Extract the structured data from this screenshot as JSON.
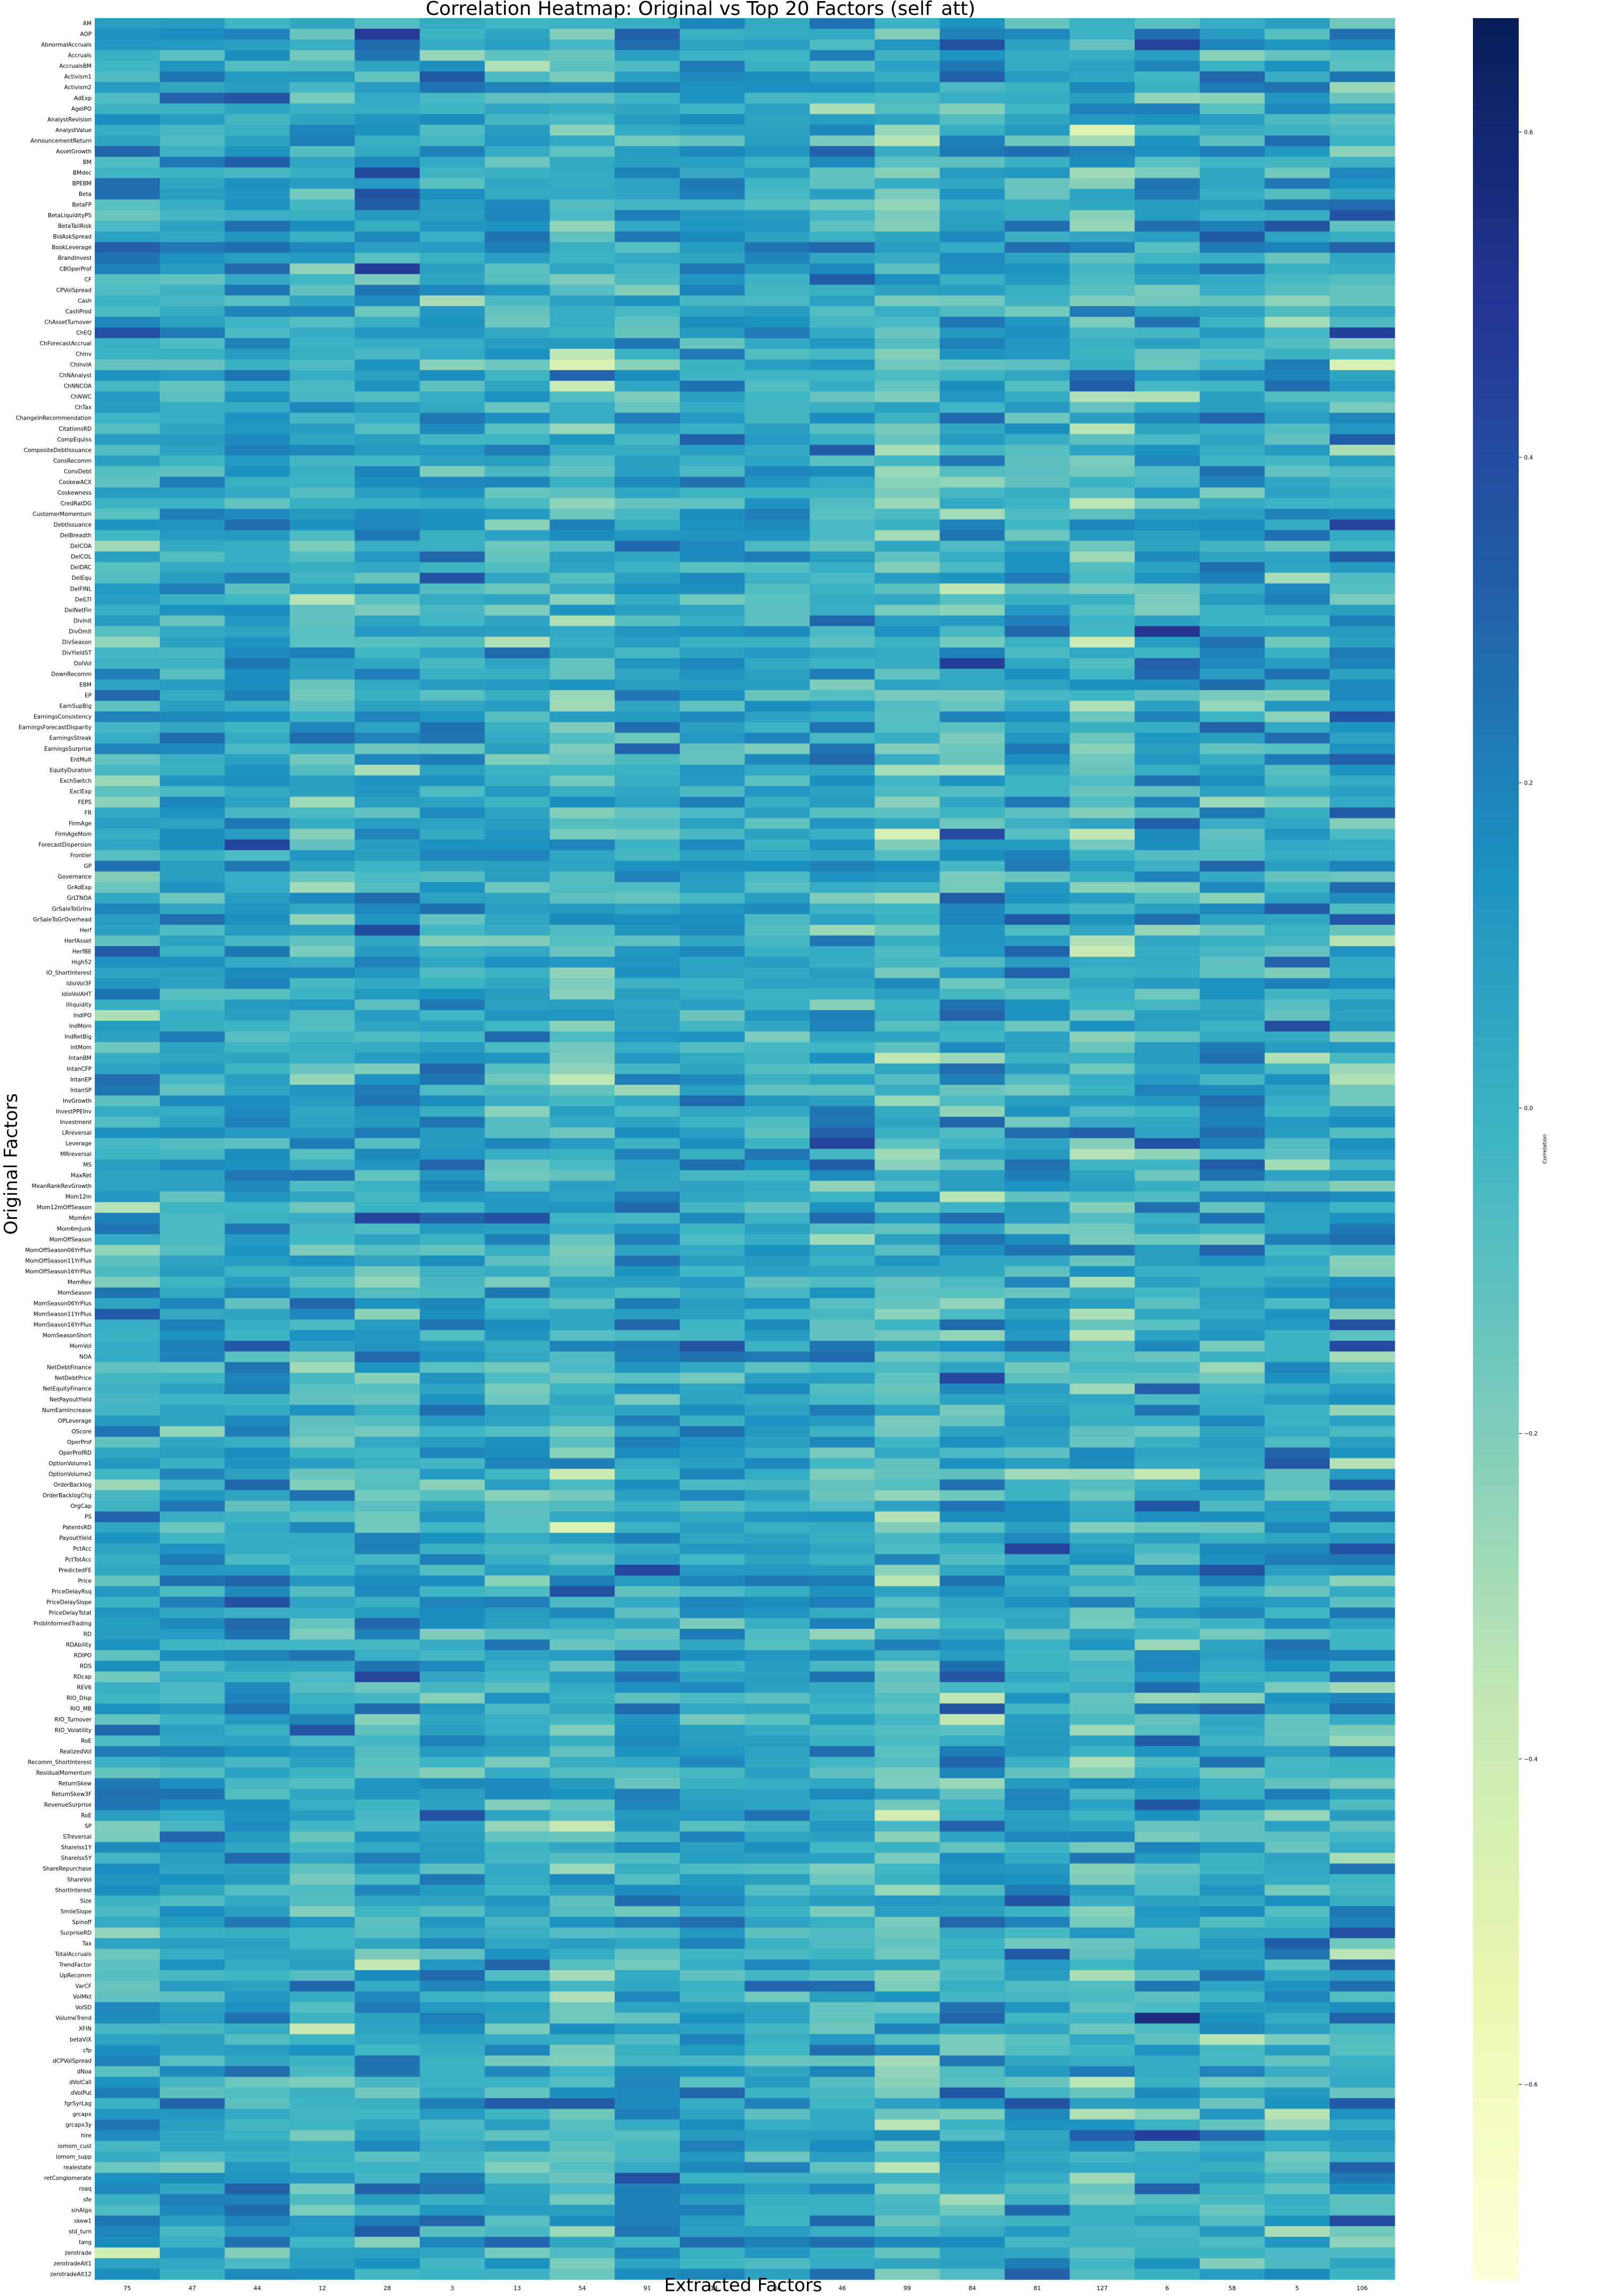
{
  "chart_data": {
    "type": "heatmap",
    "title": "Correlation Heatmap: Original vs Top 20 Factors (self_att)",
    "xlabel": "Extracted Factors",
    "ylabel": "Original Factors",
    "colorbar_label": "Correlation",
    "colormap": "YlGnBu",
    "vmin": -0.72,
    "vmax": 0.67,
    "colorbar_ticks": [
      0.6,
      0.4,
      0.2,
      0.0,
      -0.2,
      -0.4,
      -0.6
    ],
    "colorbar_tick_labels": [
      "0.6",
      "0.4",
      "0.2",
      "0.0",
      "−0.2",
      "−0.4",
      "−0.6"
    ],
    "x_categories": [
      "75",
      "47",
      "44",
      "12",
      "28",
      "3",
      "13",
      "54",
      "91",
      "114",
      "36",
      "46",
      "99",
      "84",
      "81",
      "127",
      "6",
      "58",
      "5",
      "106"
    ],
    "y_categories": [
      "AM",
      "AOP",
      "AbnormalAccruals",
      "Accruals",
      "AccrualsBM",
      "Activism1",
      "Activism2",
      "AdExp",
      "AgeIPO",
      "AnalystRevision",
      "AnalystValue",
      "AnnouncementReturn",
      "AssetGrowth",
      "BM",
      "BMdec",
      "BPEBM",
      "Beta",
      "BetaFP",
      "BetaLiquidityPS",
      "BetaTailRisk",
      "BidAskSpread",
      "BookLeverage",
      "BrandInvest",
      "CBOperProf",
      "CF",
      "CPVolSpread",
      "Cash",
      "CashProd",
      "ChAssetTurnover",
      "ChEQ",
      "ChForecastAccrual",
      "ChInv",
      "ChInvIA",
      "ChNAnalyst",
      "ChNNCOA",
      "ChNWC",
      "ChTax",
      "ChangeInRecommendation",
      "CitationsRD",
      "CompEquIss",
      "CompositeDebtIssuance",
      "ConsRecomm",
      "ConvDebt",
      "CoskewACX",
      "Coskewness",
      "CredRatDG",
      "CustomerMomentum",
      "DebtIssuance",
      "DelBreadth",
      "DelCOA",
      "DelCOL",
      "DelDRC",
      "DelEqu",
      "DelFINL",
      "DelLTI",
      "DelNetFin",
      "DivInit",
      "DivOmit",
      "DivSeason",
      "DivYieldST",
      "DolVol",
      "DownRecomm",
      "EBM",
      "EP",
      "EarnSupBig",
      "EarningsConsistency",
      "EarningsForecastDisparity",
      "EarningsStreak",
      "EarningsSurprise",
      "EntMult",
      "EquityDuration",
      "ExchSwitch",
      "ExclExp",
      "FEPS",
      "FR",
      "FirmAge",
      "FirmAgeMom",
      "ForecastDispersion",
      "Frontier",
      "GP",
      "Governance",
      "GrAdExp",
      "GrLTNOA",
      "GrSaleToGrInv",
      "GrSaleToGrOverhead",
      "Herf",
      "HerfAsset",
      "HerfBE",
      "High52",
      "IO_ShortInterest",
      "IdioVol3F",
      "IdioVolAHT",
      "Illiquidity",
      "IndIPO",
      "IndMom",
      "IndRetBig",
      "IntMom",
      "IntanBM",
      "IntanCFP",
      "IntanEP",
      "IntanSP",
      "InvGrowth",
      "InvestPPEInv",
      "Investment",
      "LRreversal",
      "Leverage",
      "MRreversal",
      "MS",
      "MaxRet",
      "MeanRankRevGrowth",
      "Mom12m",
      "Mom12mOffSeason",
      "Mom6m",
      "Mom6mJunk",
      "MomOffSeason",
      "MomOffSeason06YrPlus",
      "MomOffSeason11YrPlus",
      "MomOffSeason16YrPlus",
      "MomRev",
      "MomSeason",
      "MomSeason06YrPlus",
      "MomSeason11YrPlus",
      "MomSeason16YrPlus",
      "MomSeasonShort",
      "MomVol",
      "NOA",
      "NetDebtFinance",
      "NetDebtPrice",
      "NetEquityFinance",
      "NetPayoutYield",
      "NumEarnIncrease",
      "OPLeverage",
      "OScore",
      "OperProf",
      "OperProfRD",
      "OptionVolume1",
      "OptionVolume2",
      "OrderBacklog",
      "OrderBacklogChg",
      "OrgCap",
      "PS",
      "PatentsRD",
      "PayoutYield",
      "PctAcc",
      "PctTotAcc",
      "PredictedFE",
      "Price",
      "PriceDelayRsq",
      "PriceDelaySlope",
      "PriceDelayTstat",
      "ProbInformedTrading",
      "RD",
      "RDAbility",
      "RDIPO",
      "RDS",
      "RDcap",
      "REV6",
      "RIO_Disp",
      "RIO_MB",
      "RIO_Turnover",
      "RIO_Volatility",
      "RoE",
      "RealizedVol",
      "Recomm_ShortInterest",
      "ResidualMomentum",
      "ReturnSkew",
      "ReturnSkew3F",
      "RevenueSurprise",
      "RoE",
      "SP",
      "STreversal",
      "ShareIss1Y",
      "ShareIss5Y",
      "ShareRepurchase",
      "ShareVol",
      "ShortInterest",
      "Size",
      "SmileSlope",
      "Spinoff",
      "SurpriseRD",
      "Tax",
      "TotalAccruals",
      "TrendFactor",
      "UpRecomm",
      "VarCF",
      "VolMkt",
      "VolSD",
      "VolumeTrend",
      "XFIN",
      "betaVIX",
      "cfp",
      "dCPVolSpread",
      "dNoa",
      "dVolCall",
      "dVolPut",
      "fgrSyrLag",
      "grcapx",
      "grcapx3y",
      "hire",
      "iomom_cust",
      "iomom_supp",
      "realestate",
      "retConglomerate",
      "roaq",
      "sfe",
      "sinAlgo",
      "skew1",
      "std_turn",
      "tang",
      "zerotrade",
      "zerotradeAlt1",
      "zerotradeAlt12"
    ],
    "values_note": "Correlation matrix (rows x columns) generated in-script from a deterministic seed; not individually readable from the figure."
  }
}
